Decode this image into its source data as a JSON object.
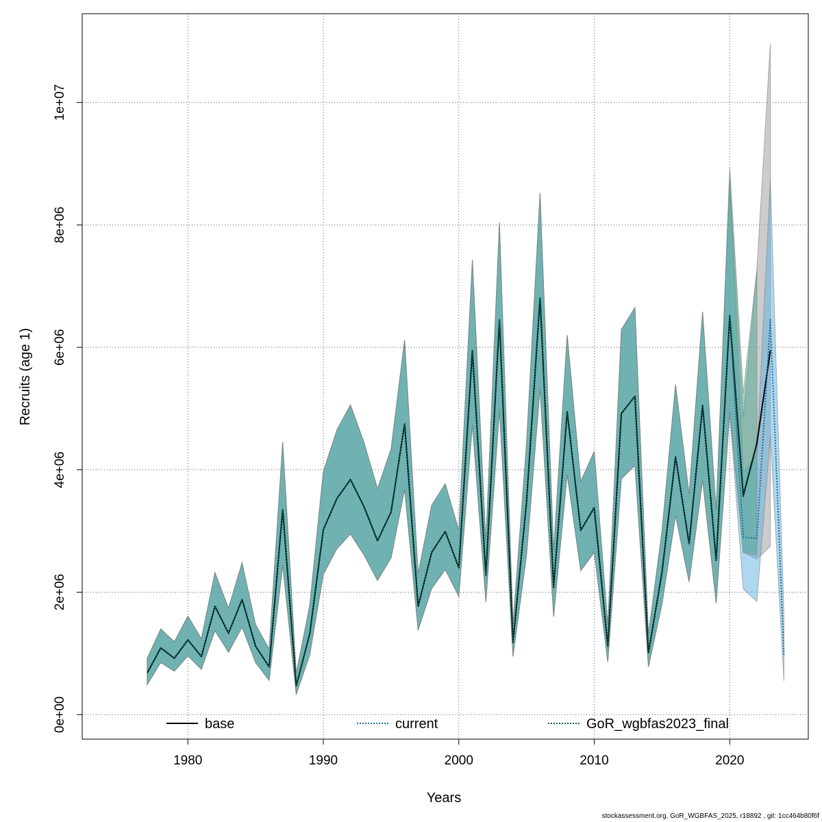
{
  "chart_data": {
    "type": "line",
    "xlabel": "Years",
    "ylabel": "Recruits (age 1)",
    "xlim": [
      1972.2,
      2025.8
    ],
    "ylim": [
      -400000,
      11450000
    ],
    "x_ticks": [
      1980,
      1990,
      2000,
      2010,
      2020
    ],
    "x_tick_labels": [
      "1980",
      "1990",
      "2000",
      "2010",
      "2020"
    ],
    "y_ticks": [
      0,
      2000000,
      4000000,
      6000000,
      8000000,
      10000000
    ],
    "y_tick_labels": [
      "0e+00",
      "2e+06",
      "4e+06",
      "6e+06",
      "8e+06",
      "1e+07"
    ],
    "grid": true,
    "legend_position": "bottom",
    "footer": "stockassessment.org, GoR_WGBFAS_2025, r18892 , git: 1cc464b80f6f",
    "series": [
      {
        "name": "base",
        "color": "#000000",
        "band_color": "#9a9a9a",
        "line_style": "solid",
        "x": [
          1977,
          1978,
          1979,
          1980,
          1981,
          1982,
          1983,
          1984,
          1985,
          1986,
          1987,
          1988,
          1989,
          1990,
          1991,
          1992,
          1993,
          1994,
          1995,
          1996,
          1997,
          1998,
          1999,
          2000,
          2001,
          2002,
          2003,
          2004,
          2005,
          2006,
          2007,
          2008,
          2009,
          2010,
          2011,
          2012,
          2013,
          2014,
          2015,
          2016,
          2017,
          2018,
          2019,
          2020,
          2021,
          2022,
          2023
        ],
        "y": [
          680000,
          1090000,
          920000,
          1220000,
          950000,
          1770000,
          1330000,
          1880000,
          1120000,
          780000,
          3350000,
          470000,
          1320000,
          3020000,
          3530000,
          3840000,
          3400000,
          2840000,
          3310000,
          4750000,
          1770000,
          2650000,
          2990000,
          2400000,
          5950000,
          2270000,
          6450000,
          1180000,
          3480000,
          6810000,
          2080000,
          4950000,
          3010000,
          3380000,
          1120000,
          4920000,
          5200000,
          1010000,
          2320000,
          4210000,
          2790000,
          5050000,
          2520000,
          6510000,
          3580000,
          4430000,
          5950000
        ],
        "lower": [
          490000,
          850000,
          710000,
          960000,
          740000,
          1370000,
          1020000,
          1430000,
          850000,
          560000,
          2440000,
          330000,
          980000,
          2290000,
          2710000,
          2950000,
          2610000,
          2190000,
          2560000,
          3680000,
          1380000,
          2060000,
          2370000,
          1930000,
          4740000,
          1840000,
          4980000,
          950000,
          2610000,
          5330000,
          1600000,
          3920000,
          2350000,
          2650000,
          860000,
          3850000,
          4070000,
          780000,
          1800000,
          3250000,
          2170000,
          3830000,
          1820000,
          4930000,
          2650000,
          2540000,
          2750000
        ],
        "upper": [
          920000,
          1400000,
          1190000,
          1610000,
          1240000,
          2320000,
          1740000,
          2480000,
          1470000,
          1070000,
          4450000,
          670000,
          1790000,
          3970000,
          4650000,
          5060000,
          4450000,
          3690000,
          4340000,
          6120000,
          2300000,
          3420000,
          3770000,
          3010000,
          7430000,
          2820000,
          8040000,
          1470000,
          4440000,
          8520000,
          2680000,
          6200000,
          3810000,
          4300000,
          1460000,
          6290000,
          6650000,
          1310000,
          3000000,
          5390000,
          3600000,
          6580000,
          3340000,
          8750000,
          4850000,
          7270000,
          10970000
        ]
      },
      {
        "name": "current",
        "color": "#1a6e96",
        "band_color": "#5fb0e0",
        "line_style": "dotted",
        "x": [
          1977,
          1978,
          1979,
          1980,
          1981,
          1982,
          1983,
          1984,
          1985,
          1986,
          1987,
          1988,
          1989,
          1990,
          1991,
          1992,
          1993,
          1994,
          1995,
          1996,
          1997,
          1998,
          1999,
          2000,
          2001,
          2002,
          2003,
          2004,
          2005,
          2006,
          2007,
          2008,
          2009,
          2010,
          2011,
          2012,
          2013,
          2014,
          2015,
          2016,
          2017,
          2018,
          2019,
          2020,
          2021,
          2022,
          2023,
          2024
        ],
        "y": [
          680000,
          1090000,
          920000,
          1220000,
          950000,
          1770000,
          1330000,
          1880000,
          1120000,
          780000,
          3350000,
          470000,
          1320000,
          3020000,
          3530000,
          3840000,
          3400000,
          2840000,
          3310000,
          4750000,
          1770000,
          2650000,
          2990000,
          2400000,
          5950000,
          2270000,
          6450000,
          1180000,
          3480000,
          6810000,
          2080000,
          4950000,
          3010000,
          3390000,
          1120000,
          4920000,
          5200000,
          1010000,
          2330000,
          4220000,
          2790000,
          5050000,
          2520000,
          6500000,
          2900000,
          2880000,
          6450000,
          980000
        ],
        "lower": [
          490000,
          850000,
          710000,
          960000,
          740000,
          1370000,
          1020000,
          1430000,
          850000,
          560000,
          2440000,
          330000,
          980000,
          2290000,
          2710000,
          2950000,
          2610000,
          2190000,
          2560000,
          3680000,
          1380000,
          2060000,
          2370000,
          1930000,
          4740000,
          1840000,
          4980000,
          950000,
          2610000,
          5330000,
          1600000,
          3920000,
          2350000,
          2650000,
          860000,
          3850000,
          4070000,
          780000,
          1800000,
          3250000,
          2170000,
          3830000,
          1820000,
          4920000,
          2050000,
          1850000,
          4550000,
          550000
        ],
        "upper": [
          920000,
          1400000,
          1190000,
          1610000,
          1240000,
          2320000,
          1740000,
          2480000,
          1470000,
          1070000,
          4450000,
          670000,
          1790000,
          3970000,
          4650000,
          5060000,
          4450000,
          3690000,
          4340000,
          6120000,
          2300000,
          3420000,
          3770000,
          3010000,
          7430000,
          2820000,
          8040000,
          1470000,
          4440000,
          8520000,
          2680000,
          6200000,
          3810000,
          4300000,
          1460000,
          6290000,
          6650000,
          1310000,
          3000000,
          5390000,
          3600000,
          6580000,
          3340000,
          8700000,
          3950000,
          4250000,
          8750000,
          1650000
        ]
      },
      {
        "name": "GoR_wgbfas2023_final",
        "color": "#0b5e50",
        "band_color": "#49a68d",
        "line_style": "dotted",
        "x": [
          1977,
          1978,
          1979,
          1980,
          1981,
          1982,
          1983,
          1984,
          1985,
          1986,
          1987,
          1988,
          1989,
          1990,
          1991,
          1992,
          1993,
          1994,
          1995,
          1996,
          1997,
          1998,
          1999,
          2000,
          2001,
          2002,
          2003,
          2004,
          2005,
          2006,
          2007,
          2008,
          2009,
          2010,
          2011,
          2012,
          2013,
          2014,
          2015,
          2016,
          2017,
          2018,
          2019,
          2020,
          2021,
          2022
        ],
        "y": [
          680000,
          1090000,
          920000,
          1220000,
          950000,
          1770000,
          1330000,
          1880000,
          1120000,
          780000,
          3350000,
          470000,
          1320000,
          3020000,
          3530000,
          3840000,
          3400000,
          2840000,
          3310000,
          4750000,
          1770000,
          2650000,
          2990000,
          2400000,
          5950000,
          2270000,
          6450000,
          1180000,
          3480000,
          6810000,
          2080000,
          4950000,
          3010000,
          3390000,
          1120000,
          4920000,
          5200000,
          1010000,
          2330000,
          4220000,
          2790000,
          5050000,
          2520000,
          6520000,
          3560000,
          4400000
        ],
        "lower": [
          490000,
          850000,
          710000,
          960000,
          740000,
          1370000,
          1020000,
          1430000,
          850000,
          560000,
          2440000,
          330000,
          980000,
          2290000,
          2710000,
          2950000,
          2610000,
          2190000,
          2560000,
          3680000,
          1380000,
          2060000,
          2370000,
          1930000,
          4740000,
          1840000,
          4980000,
          950000,
          2610000,
          5330000,
          1600000,
          3920000,
          2350000,
          2650000,
          860000,
          3850000,
          4070000,
          780000,
          1800000,
          3250000,
          2170000,
          3830000,
          1820000,
          4950000,
          2650000,
          2600000
        ],
        "upper": [
          920000,
          1400000,
          1190000,
          1610000,
          1240000,
          2320000,
          1740000,
          2480000,
          1470000,
          1070000,
          4450000,
          670000,
          1790000,
          3970000,
          4650000,
          5060000,
          4450000,
          3690000,
          4340000,
          6120000,
          2300000,
          3420000,
          3770000,
          3010000,
          7430000,
          2820000,
          8040000,
          1470000,
          4440000,
          8520000,
          2680000,
          6200000,
          3810000,
          4300000,
          1460000,
          6290000,
          6650000,
          1310000,
          3000000,
          5390000,
          3600000,
          6580000,
          3340000,
          8950000,
          5250000,
          7270000
        ]
      }
    ]
  }
}
